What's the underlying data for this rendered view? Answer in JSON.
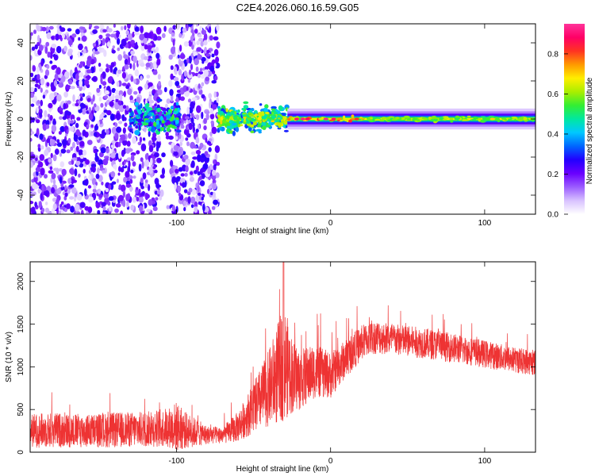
{
  "figure": {
    "title": "C2E4.2026.060.16.59.G05"
  },
  "chart_data": [
    {
      "type": "heatmap",
      "name": "spectrogram",
      "xlabel": "Height of straight line (km)",
      "ylabel": "Frequency (Hz)",
      "xlim": [
        -195,
        133
      ],
      "ylim": [
        -50,
        50
      ],
      "xticks": [
        -100,
        0,
        100
      ],
      "yticks": [
        -40,
        -20,
        0,
        20,
        40
      ],
      "colorbar": {
        "label": "Normalized spectral amplitude",
        "range": [
          0.0,
          0.95
        ],
        "ticks": [
          0.0,
          0.2,
          0.4,
          0.6,
          0.8
        ],
        "tick_labels": [
          "0.0",
          "0.2",
          "0.4",
          "0.6",
          "0.8"
        ],
        "colors": [
          "#ffffff",
          "#d8c2ff",
          "#9b5cff",
          "#6a00ff",
          "#2200ff",
          "#0066ff",
          "#00c8ff",
          "#00e8a0",
          "#33ee33",
          "#aaee00",
          "#ffee00",
          "#ff9900",
          "#ff3322",
          "#ff0066",
          "#ff3399"
        ]
      },
      "regions": [
        {
          "x": [
            -195,
            -73
          ],
          "description": "scattered noise",
          "level": 0.15
        },
        {
          "x": [
            -130,
            -98
          ],
          "description": "signal cluster",
          "level": 0.35
        },
        {
          "x": [
            -73,
            -28
          ],
          "description": "broad signal",
          "level": 0.45
        },
        {
          "x": [
            -28,
            133
          ],
          "description": "narrow carrier near 0 Hz",
          "level": 0.6
        }
      ]
    },
    {
      "type": "line",
      "name": "snr",
      "xlabel": "Height of straight line (km)",
      "ylabel": "SNR (10 * v/v)",
      "xlim": [
        -195,
        133
      ],
      "ylim": [
        0,
        2230
      ],
      "xticks": [
        -100,
        0,
        100
      ],
      "yticks": [
        0,
        500,
        1000,
        1500,
        2000
      ],
      "color": "#ee3333",
      "series": [
        {
          "name": "SNR",
          "x": [
            -195,
            -180,
            -160,
            -140,
            -120,
            -105,
            -100,
            -95,
            -80,
            -70,
            -60,
            -50,
            -40,
            -35,
            -30,
            -25,
            -20,
            -10,
            0,
            10,
            20,
            25,
            30,
            40,
            60,
            80,
            100,
            120,
            133
          ],
          "y": [
            250,
            260,
            250,
            260,
            270,
            290,
            300,
            260,
            200,
            200,
            300,
            520,
            750,
            900,
            1050,
            900,
            850,
            950,
            900,
            1100,
            1280,
            1330,
            1350,
            1320,
            1280,
            1220,
            1150,
            1080,
            1050
          ],
          "noise_amplitude": [
            220,
            230,
            220,
            230,
            230,
            260,
            330,
            250,
            120,
            110,
            200,
            330,
            500,
            650,
            750,
            500,
            400,
            350,
            300,
            250,
            230,
            220,
            220,
            210,
            200,
            190,
            180,
            170,
            170
          ]
        }
      ]
    }
  ]
}
